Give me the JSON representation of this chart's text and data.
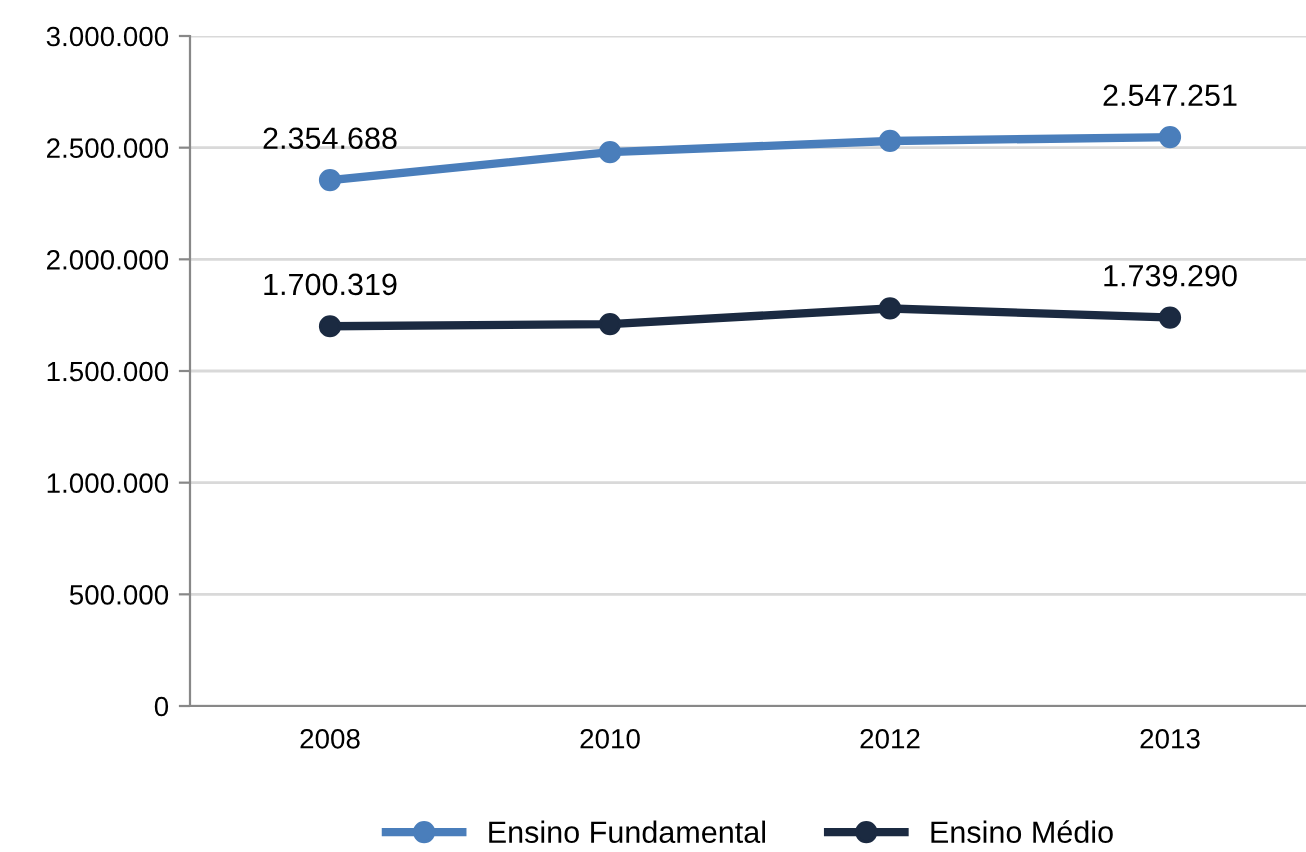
{
  "chart_data": {
    "type": "line",
    "categories": [
      "2008",
      "2010",
      "2012",
      "2013"
    ],
    "series": [
      {
        "name": "Ensino Fundamental",
        "color": "#4a7ebb",
        "values": [
          2354688,
          2480000,
          2530000,
          2547251
        ],
        "value_labels": [
          "2.354.688",
          null,
          null,
          "2.547.251"
        ]
      },
      {
        "name": "Ensino Médio",
        "color": "#1b2a41",
        "values": [
          1700319,
          1710000,
          1780000,
          1739290
        ],
        "value_labels": [
          "1.700.319",
          null,
          null,
          "1.739.290"
        ]
      }
    ],
    "ylim": [
      0,
      3000000
    ],
    "yticks": [
      {
        "value": 0,
        "label": "0"
      },
      {
        "value": 500000,
        "label": "500.000"
      },
      {
        "value": 1000000,
        "label": "1.000.000"
      },
      {
        "value": 1500000,
        "label": "1.500.000"
      },
      {
        "value": 2000000,
        "label": "2.000.000"
      },
      {
        "value": 2500000,
        "label": "2.500.000"
      },
      {
        "value": 3000000,
        "label": "3.000.000"
      }
    ],
    "grid": "y",
    "legend": "bottom",
    "marker": "circle",
    "line_style": "solid"
  }
}
